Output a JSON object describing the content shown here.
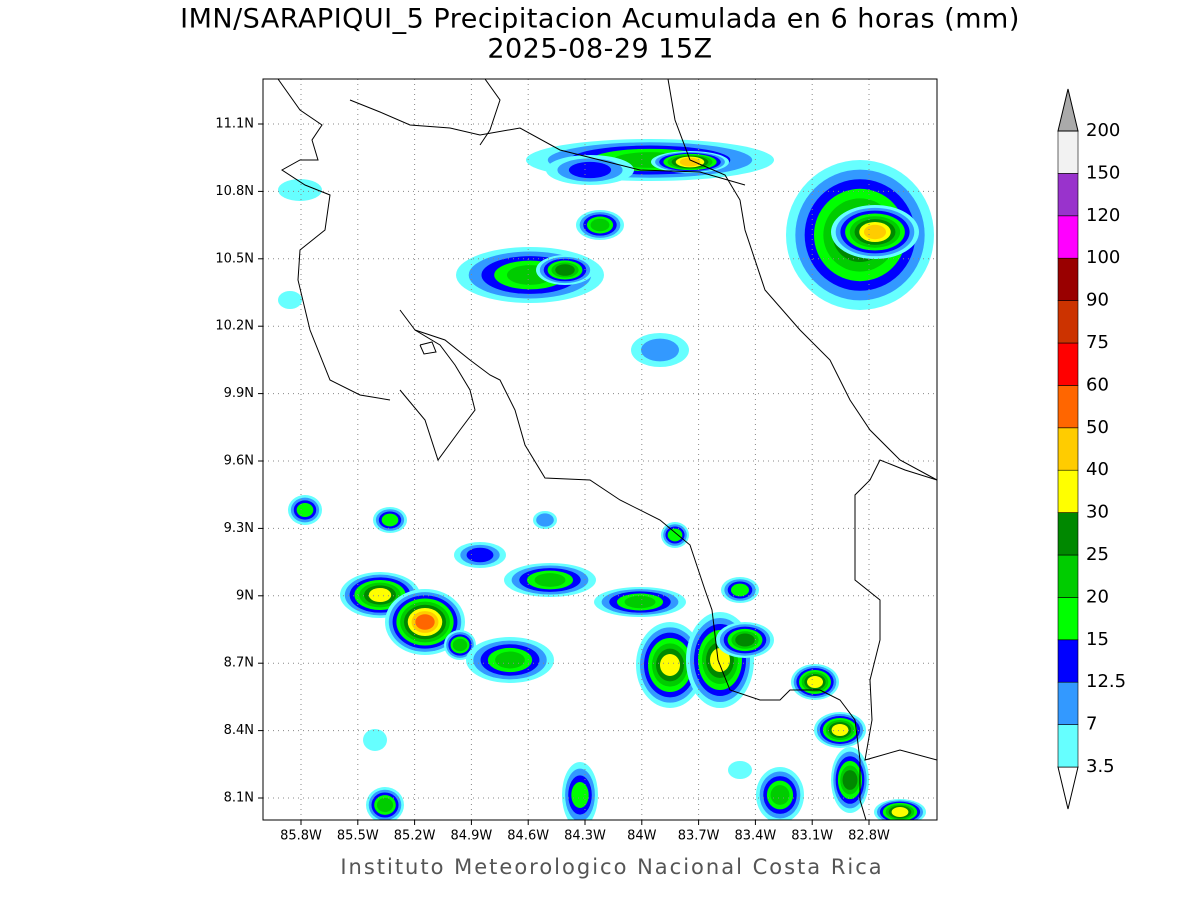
{
  "title": "IMN/SARAPIQUI_5 Precipitacion Acumulada en 6 horas (mm)",
  "subtitle": "2025-08-29 15Z",
  "map": {
    "lat_labels": [
      "11.1N",
      "10.8N",
      "10.5N",
      "10.2N",
      "9.9N",
      "9.6N",
      "9.3N",
      "9N",
      "8.7N",
      "8.4N",
      "8.1N"
    ],
    "lon_labels": [
      "85.8W",
      "85.5W",
      "85.2W",
      "84.9W",
      "84.6W",
      "84.3W",
      "84W",
      "83.7W",
      "83.4W",
      "83.1W",
      "82.8W"
    ]
  },
  "colorbar": {
    "levels": [
      "3.5",
      "7",
      "12.5",
      "15",
      "20",
      "25",
      "30",
      "40",
      "50",
      "60",
      "75",
      "90",
      "100",
      "120",
      "150",
      "200"
    ],
    "colors": [
      "#ffffff",
      "#66ffff",
      "#3399ff",
      "#0000ff",
      "#00ff00",
      "#00cc00",
      "#008800",
      "#ffff00",
      "#ffcc00",
      "#ff6600",
      "#ff0000",
      "#cc3300",
      "#990000",
      "#ff00ff",
      "#9933cc",
      "#f2f2f2",
      "#aaaaaa"
    ]
  },
  "footer": "Instituto Meteorologico Nacional Costa Rica"
}
